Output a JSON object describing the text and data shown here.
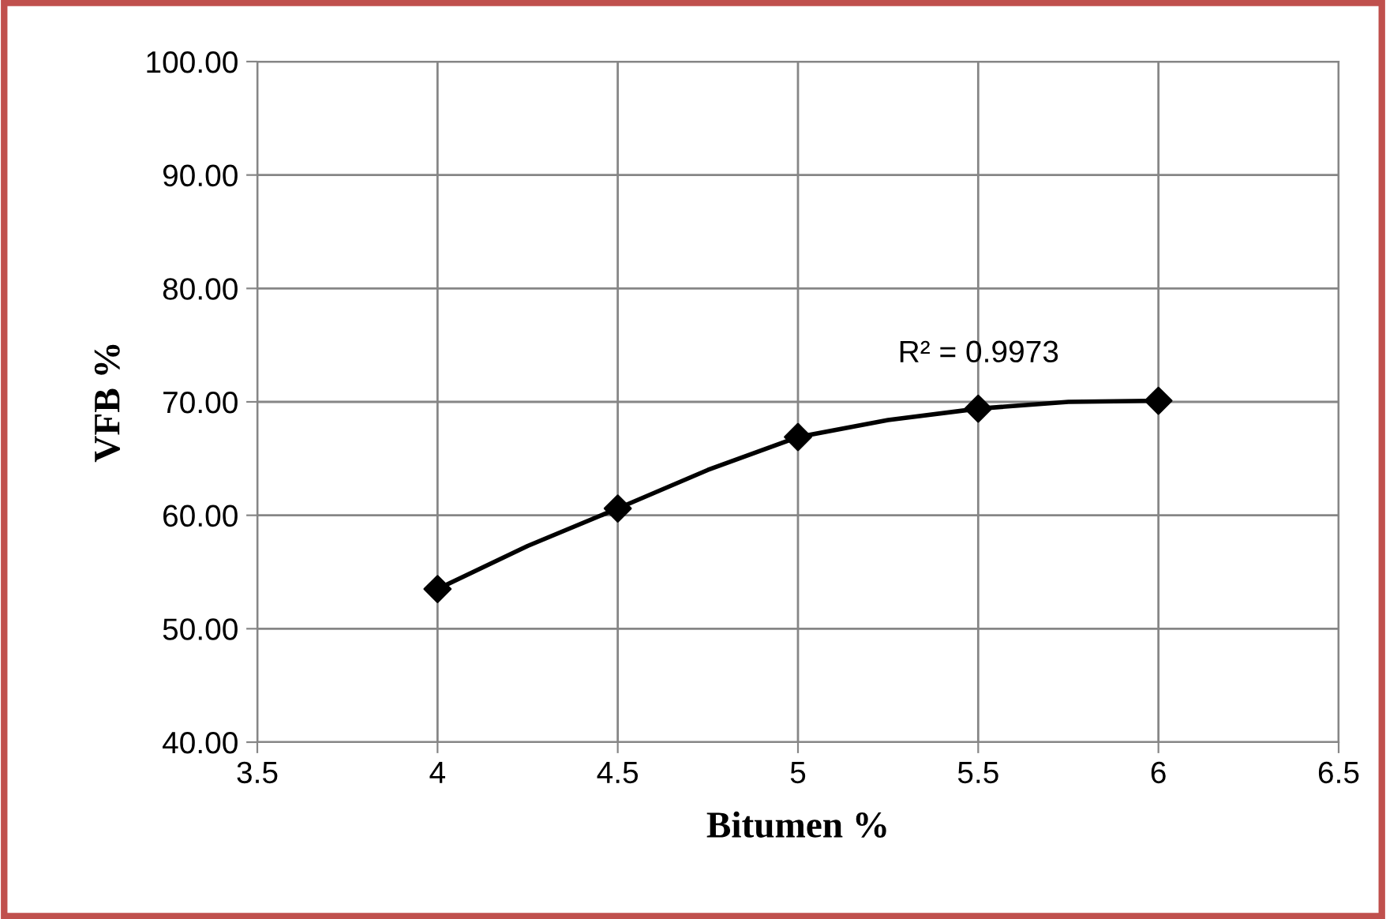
{
  "chart_data": {
    "type": "scatter",
    "xlabel": "Bitumen %",
    "ylabel": "VFB %",
    "xlim": [
      3.5,
      6.5
    ],
    "xticks": [
      3.5,
      4,
      4.5,
      5,
      5.5,
      6,
      6.5
    ],
    "ylim": [
      40,
      100
    ],
    "yticks": [
      {
        "value": 40,
        "label": "40.00"
      },
      {
        "value": 50,
        "label": "50.00"
      },
      {
        "value": 60,
        "label": "60.00"
      },
      {
        "value": 70,
        "label": "70.00"
      },
      {
        "value": 80,
        "label": "80.00"
      },
      {
        "value": 90,
        "label": "90.00"
      },
      {
        "value": 100,
        "label": "100.00"
      }
    ],
    "grid": true,
    "legend": false,
    "series": [
      {
        "color": "#000000",
        "marker": "diamond",
        "x": [
          4,
          4.5,
          5,
          5.5,
          6
        ],
        "values": [
          53.5,
          60.6,
          66.9,
          69.4,
          70.1
        ]
      },
      {
        "type": "line",
        "color": "#000000",
        "marker": "none",
        "line_style": "solid",
        "x": [
          4,
          4.25,
          4.5,
          4.75,
          5,
          5.25,
          5.5,
          5.75,
          6
        ],
        "values": [
          53.5,
          57.3,
          60.6,
          64.0,
          66.9,
          68.4,
          69.4,
          70.0,
          70.1
        ]
      }
    ],
    "annotations": [
      "R² = 0.9973"
    ]
  }
}
